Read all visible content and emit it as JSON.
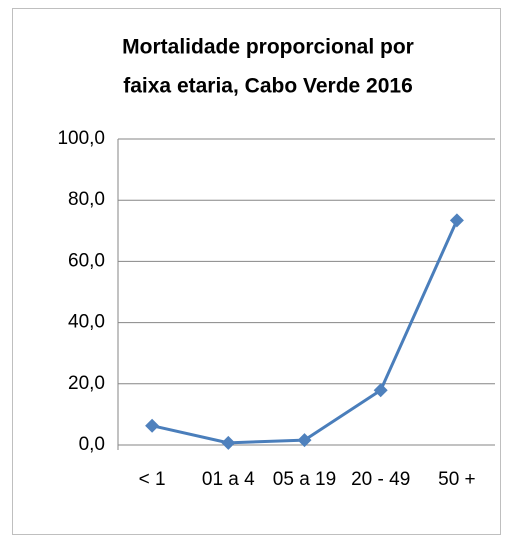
{
  "chart_data": {
    "type": "line",
    "title": [
      "Mortalidade proporcional por",
      "faixa etaria, Cabo Verde 2016"
    ],
    "categories": [
      "< 1",
      "01 a 4",
      "05 a 19",
      "20 - 49",
      "50 +"
    ],
    "series": [
      {
        "name": "Mortalidade proporcional",
        "color": "#4a7ebb",
        "values": [
          6.3,
          0.7,
          1.6,
          17.9,
          73.4
        ]
      }
    ],
    "ylim": [
      0,
      100
    ],
    "yticks": [
      {
        "value": 0,
        "label": "0,0"
      },
      {
        "value": 20,
        "label": "20,0"
      },
      {
        "value": 40,
        "label": "40,0"
      },
      {
        "value": 60,
        "label": "60,0"
      },
      {
        "value": 80,
        "label": "80,0"
      },
      {
        "value": 100,
        "label": "100,0"
      }
    ],
    "grid": true
  }
}
